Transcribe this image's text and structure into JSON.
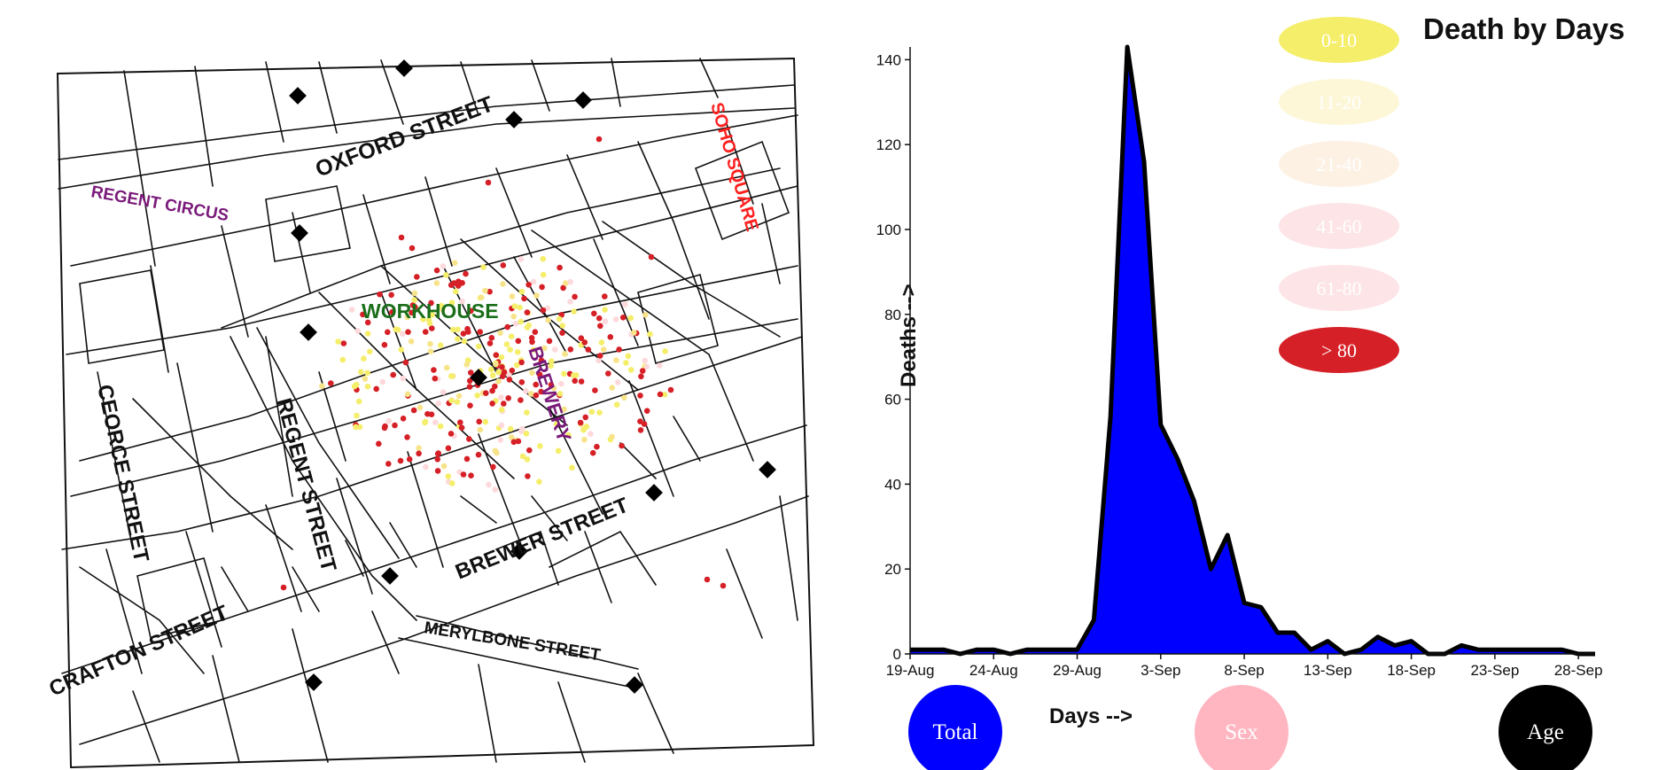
{
  "map": {
    "streets": [
      {
        "id": "oxford",
        "label": "OXFORD STREET",
        "color": "#111111"
      },
      {
        "id": "regent-circus",
        "label": "REGENT CIRCUS",
        "color": "#7a1a7a"
      },
      {
        "id": "soho-square",
        "label": "SOHO SQUARE",
        "color": "#ff2020"
      },
      {
        "id": "workhouse",
        "label": "WORKHOUSE",
        "color": "#1a6e1a"
      },
      {
        "id": "brewery",
        "label": "BREWERY",
        "color": "#7a1a7a"
      },
      {
        "id": "george",
        "label": "CEORCE STREET",
        "color": "#111111"
      },
      {
        "id": "regent",
        "label": "REGENT STREET",
        "color": "#111111"
      },
      {
        "id": "brewer",
        "label": "BREWER STREET",
        "color": "#111111"
      },
      {
        "id": "merylbone",
        "label": "MERYLBONE STREET",
        "color": "#111111"
      },
      {
        "id": "crafton",
        "label": "CRAFTON STREET",
        "color": "#111111"
      }
    ]
  },
  "chart": {
    "title": "Death by Days",
    "ylabel": "Deaths -->",
    "xlabel": "Days -->",
    "fill_color": "#0000ff",
    "line_color": "#000000"
  },
  "legend": [
    {
      "label": "0-10",
      "color": "#f5ee6a"
    },
    {
      "label": "11-20",
      "color": "#fdf7d8"
    },
    {
      "label": "21-40",
      "color": "#fdf1e4"
    },
    {
      "label": "41-60",
      "color": "#fde4e6"
    },
    {
      "label": "61-80",
      "color": "#fde4e6"
    },
    {
      "label": "> 80",
      "color": "#d62027"
    }
  ],
  "buttons": [
    {
      "id": "total",
      "label": "Total",
      "color": "#0000ff"
    },
    {
      "id": "sex",
      "label": "Sex",
      "color": "#ffb6c1"
    },
    {
      "id": "age",
      "label": "Age",
      "color": "#000000"
    }
  ],
  "chart_data": {
    "type": "area",
    "title": "Death by Days",
    "xlabel": "Days -->",
    "ylabel": "Deaths -->",
    "ylim": [
      0,
      143
    ],
    "xlim": [
      "1854-08-19",
      "1854-09-29"
    ],
    "x_tick_labels": [
      "19-Aug",
      "24-Aug",
      "29-Aug",
      "3-Sep",
      "8-Sep",
      "13-Sep",
      "18-Sep",
      "23-Sep",
      "28-Sep"
    ],
    "y_tick_labels": [
      "0",
      "20",
      "40",
      "60",
      "80",
      "100",
      "120",
      "140"
    ],
    "grid": false,
    "legend_position": "top-right",
    "x": [
      "1854-08-19",
      "1854-08-20",
      "1854-08-21",
      "1854-08-22",
      "1854-08-23",
      "1854-08-24",
      "1854-08-25",
      "1854-08-26",
      "1854-08-27",
      "1854-08-28",
      "1854-08-29",
      "1854-08-30",
      "1854-08-31",
      "1854-09-01",
      "1854-09-02",
      "1854-09-03",
      "1854-09-04",
      "1854-09-05",
      "1854-09-06",
      "1854-09-07",
      "1854-09-08",
      "1854-09-09",
      "1854-09-10",
      "1854-09-11",
      "1854-09-12",
      "1854-09-13",
      "1854-09-14",
      "1854-09-15",
      "1854-09-16",
      "1854-09-17",
      "1854-09-18",
      "1854-09-19",
      "1854-09-20",
      "1854-09-21",
      "1854-09-22",
      "1854-09-23",
      "1854-09-24",
      "1854-09-25",
      "1854-09-26",
      "1854-09-27",
      "1854-09-28",
      "1854-09-29"
    ],
    "values": [
      1,
      1,
      1,
      0,
      1,
      1,
      0,
      1,
      1,
      1,
      1,
      8,
      56,
      143,
      116,
      54,
      46,
      36,
      20,
      28,
      12,
      11,
      5,
      5,
      1,
      3,
      0,
      1,
      4,
      2,
      3,
      0,
      0,
      2,
      1,
      1,
      1,
      1,
      1,
      1,
      0,
      0
    ]
  }
}
